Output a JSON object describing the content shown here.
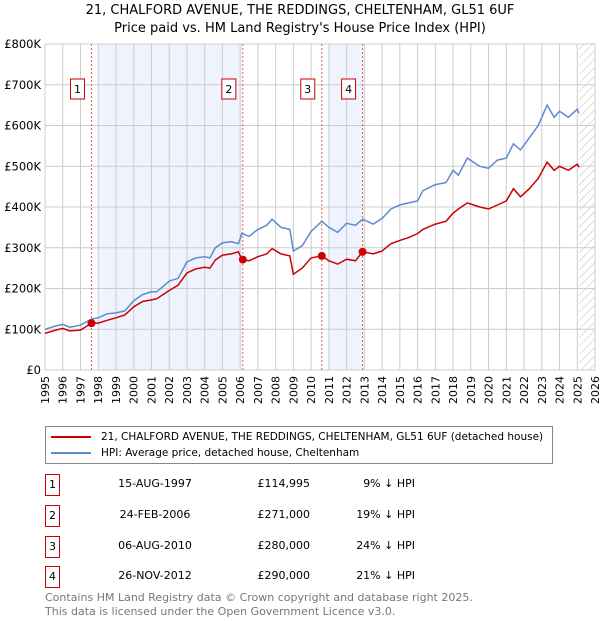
{
  "chart_data": {
    "type": "line",
    "title": "21, CHALFORD AVENUE, THE REDDINGS, CHELTENHAM, GL51 6UF",
    "subtitle": "Price paid vs. HM Land Registry's House Price Index (HPI)",
    "xlim": [
      1995,
      2026
    ],
    "ylim": [
      0,
      800000
    ],
    "x_ticks": [
      "1995",
      "1996",
      "1997",
      "1998",
      "1999",
      "2000",
      "2001",
      "2002",
      "2003",
      "2004",
      "2005",
      "2006",
      "2007",
      "2008",
      "2009",
      "2010",
      "2011",
      "2012",
      "2013",
      "2014",
      "2015",
      "2016",
      "2017",
      "2018",
      "2019",
      "2020",
      "2021",
      "2022",
      "2023",
      "2024",
      "2025",
      "2026"
    ],
    "y_ticks": [
      {
        "value": 0,
        "label": "£0"
      },
      {
        "value": 100000,
        "label": "£100K"
      },
      {
        "value": 200000,
        "label": "£200K"
      },
      {
        "value": 300000,
        "label": "£300K"
      },
      {
        "value": 400000,
        "label": "£400K"
      },
      {
        "value": 500000,
        "label": "£500K"
      },
      {
        "value": 600000,
        "label": "£600K"
      },
      {
        "value": 700000,
        "label": "£700K"
      },
      {
        "value": 800000,
        "label": "£800K"
      }
    ],
    "grid": true,
    "shaded_periods": [
      [
        1998.0,
        2006.1
      ],
      [
        2011.0,
        2012.9
      ]
    ],
    "forecast_hatch_from": 2025.1,
    "series": [
      {
        "name": "21, CHALFORD AVENUE, THE REDDINGS, CHELTENHAM, GL51 6UF (detached house)",
        "color": "#cc0000",
        "x": [
          1995,
          1995.6,
          1996,
          1996.4,
          1997,
          1997.62,
          1998,
          1998.5,
          1999,
          1999.5,
          2000,
          2000.5,
          2001,
          2001.3,
          2002,
          2002.5,
          2003,
          2003.5,
          2004,
          2004.3,
          2004.6,
          2005,
          2005.5,
          2005.9,
          2006.1,
          2006.5,
          2007,
          2007.5,
          2007.8,
          2008.3,
          2008.8,
          2009.0,
          2009.5,
          2010,
          2010.6,
          2011,
          2011.5,
          2012,
          2012.5,
          2012.9,
          2013.5,
          2014,
          2014.5,
          2015,
          2015.5,
          2016,
          2016.3,
          2017,
          2017.6,
          2018,
          2018.3,
          2018.8,
          2019.5,
          2020,
          2020.5,
          2021,
          2021.4,
          2021.8,
          2022.3,
          2022.8,
          2023.3,
          2023.7,
          2024,
          2024.5,
          2025,
          2025.1
        ],
        "y": [
          90000,
          98000,
          102000,
          96000,
          98000,
          114995,
          115000,
          122000,
          128000,
          135000,
          155000,
          168000,
          172000,
          175000,
          195000,
          208000,
          238000,
          248000,
          252000,
          250000,
          270000,
          282000,
          285000,
          290000,
          271000,
          268000,
          278000,
          285000,
          298000,
          285000,
          280000,
          235000,
          250000,
          275000,
          280000,
          268000,
          260000,
          272000,
          268000,
          290000,
          285000,
          292000,
          310000,
          318000,
          325000,
          335000,
          345000,
          358000,
          365000,
          385000,
          395000,
          410000,
          400000,
          395000,
          405000,
          415000,
          445000,
          425000,
          445000,
          470000,
          510000,
          490000,
          500000,
          490000,
          505000,
          498000
        ]
      },
      {
        "name": "HPI: Average price, detached house, Cheltenham",
        "color": "#5b8bd0",
        "x": [
          1995,
          1995.6,
          1996,
          1996.4,
          1997,
          1997.62,
          1998,
          1998.5,
          1999,
          1999.5,
          2000,
          2000.5,
          2001,
          2001.3,
          2002,
          2002.5,
          2003,
          2003.5,
          2004,
          2004.3,
          2004.6,
          2005,
          2005.5,
          2005.9,
          2006.1,
          2006.5,
          2007,
          2007.5,
          2007.8,
          2008.3,
          2008.8,
          2009.0,
          2009.5,
          2010,
          2010.6,
          2011,
          2011.5,
          2012,
          2012.5,
          2012.9,
          2013.5,
          2014,
          2014.5,
          2015,
          2015.5,
          2016,
          2016.3,
          2017,
          2017.6,
          2018,
          2018.3,
          2018.8,
          2019.5,
          2020,
          2020.5,
          2021,
          2021.4,
          2021.8,
          2022.3,
          2022.8,
          2023.3,
          2023.7,
          2024,
          2024.5,
          2025,
          2025.1
        ],
        "y": [
          100000,
          108000,
          112000,
          105000,
          110000,
          125000,
          128000,
          138000,
          140000,
          145000,
          170000,
          185000,
          192000,
          192000,
          218000,
          225000,
          265000,
          275000,
          278000,
          275000,
          300000,
          312000,
          315000,
          310000,
          335000,
          328000,
          345000,
          355000,
          370000,
          350000,
          345000,
          292000,
          305000,
          340000,
          365000,
          350000,
          338000,
          360000,
          355000,
          370000,
          358000,
          372000,
          395000,
          405000,
          410000,
          415000,
          440000,
          455000,
          460000,
          490000,
          478000,
          520000,
          500000,
          495000,
          515000,
          520000,
          555000,
          540000,
          570000,
          600000,
          650000,
          620000,
          635000,
          620000,
          640000,
          630000
        ]
      }
    ],
    "sales": [
      {
        "id": "1",
        "x": 1997.62,
        "y": 114995
      },
      {
        "id": "2",
        "x": 2006.15,
        "y": 271000
      },
      {
        "id": "3",
        "x": 2010.6,
        "y": 280000
      },
      {
        "id": "4",
        "x": 2012.9,
        "y": 290000
      }
    ],
    "legend_position": "bottom"
  },
  "header": {
    "title": "21, CHALFORD AVENUE, THE REDDINGS, CHELTENHAM, GL51 6UF",
    "subtitle": "Price paid vs. HM Land Registry's House Price Index (HPI)"
  },
  "legend": {
    "property": "21, CHALFORD AVENUE, THE REDDINGS, CHELTENHAM, GL51 6UF (detached house)",
    "hpi": "HPI: Average price, detached house, Cheltenham"
  },
  "transactions": [
    {
      "num": "1",
      "date": "15-AUG-1997",
      "price": "£114,995",
      "hpi": "9% ↓ HPI"
    },
    {
      "num": "2",
      "date": "24-FEB-2006",
      "price": "£271,000",
      "hpi": "19% ↓ HPI"
    },
    {
      "num": "3",
      "date": "06-AUG-2010",
      "price": "£280,000",
      "hpi": "24% ↓ HPI"
    },
    {
      "num": "4",
      "date": "26-NOV-2012",
      "price": "£290,000",
      "hpi": "21% ↓ HPI"
    }
  ],
  "footer": {
    "line1": "Contains HM Land Registry data © Crown copyright and database right 2025.",
    "line2": "This data is licensed under the Open Government Licence v3.0."
  }
}
